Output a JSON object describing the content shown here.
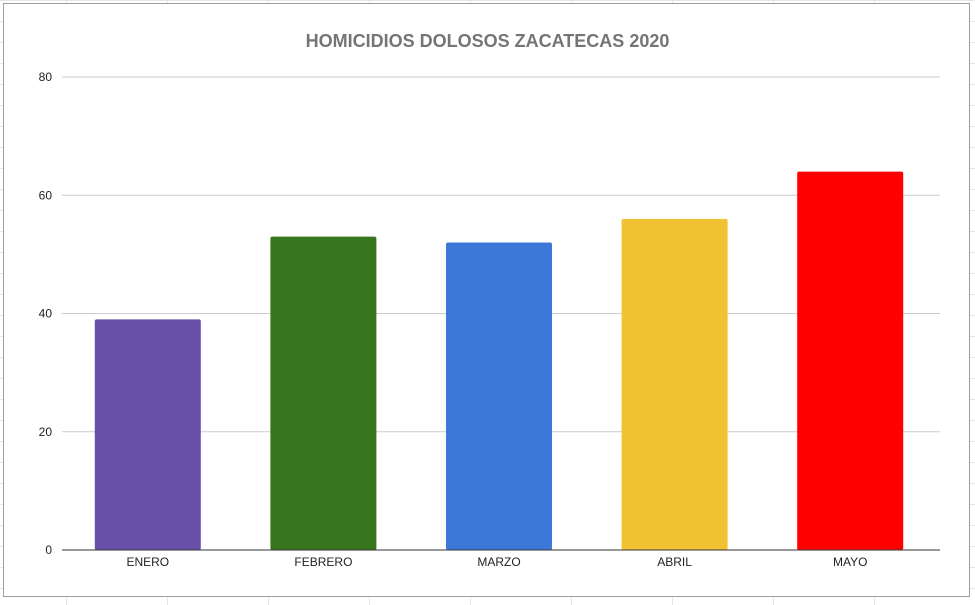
{
  "chart_data": {
    "type": "bar",
    "title": "HOMICIDIOS DOLOSOS ZACATECAS 2020",
    "categories": [
      "ENERO",
      "FEBRERO",
      "MARZO",
      "ABRIL",
      "MAYO"
    ],
    "values": [
      39,
      53,
      52,
      56,
      64
    ],
    "colors": [
      "#6a4fa8",
      "#38761d",
      "#3c78d8",
      "#f1c232",
      "#ff0000"
    ],
    "ylim": [
      0,
      80
    ],
    "yticks": [
      "0",
      "20",
      "40",
      "60",
      "80"
    ],
    "xlabel": "",
    "ylabel": "",
    "grid": true,
    "legend": "none"
  }
}
